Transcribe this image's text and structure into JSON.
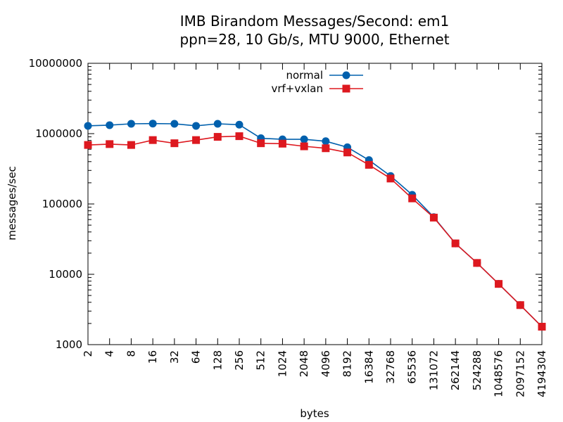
{
  "chart_data": {
    "type": "line",
    "title": "IMB Birandom Messages/Second: em1",
    "subtitle": "ppn=28, 10 Gb/s, MTU 9000, Ethernet",
    "xlabel": "bytes",
    "ylabel": "messages/sec",
    "x_scale": "log2",
    "y_scale": "log10",
    "xlim": [
      2,
      4194304
    ],
    "ylim": [
      1000,
      10000000
    ],
    "x_ticks": [
      "2",
      "4",
      "8",
      "16",
      "32",
      "64",
      "128",
      "256",
      "512",
      "1024",
      "2048",
      "4096",
      "8192",
      "16384",
      "32768",
      "65536",
      "131072",
      "262144",
      "524288",
      "1048576",
      "2097152",
      "4194304"
    ],
    "x_tick_values": [
      2,
      4,
      8,
      16,
      32,
      64,
      128,
      256,
      512,
      1024,
      2048,
      4096,
      8192,
      16384,
      32768,
      65536,
      131072,
      262144,
      524288,
      1048576,
      2097152,
      4194304
    ],
    "y_ticks": [
      "1000",
      "10000",
      "100000",
      "1000000",
      "10000000"
    ],
    "y_tick_values": [
      1000,
      10000,
      100000,
      1000000,
      10000000
    ],
    "legend_position": "top-center",
    "grid": false,
    "series": [
      {
        "name": "normal",
        "color": "#0060ad",
        "marker": "circle",
        "x": [
          2,
          4,
          8,
          16,
          32,
          64,
          128,
          256,
          512,
          1024,
          2048,
          4096,
          8192,
          16384,
          32768,
          65536,
          131072,
          262144,
          524288,
          1048576,
          2097152,
          4194304
        ],
        "values": [
          1290000,
          1320000,
          1380000,
          1390000,
          1380000,
          1290000,
          1380000,
          1340000,
          860000,
          830000,
          830000,
          780000,
          640000,
          420000,
          250000,
          135000,
          65000,
          27500,
          14500,
          7300,
          3650,
          1800
        ]
      },
      {
        "name": "vrf+vxlan",
        "color": "#dd181f",
        "marker": "square",
        "x": [
          2,
          4,
          8,
          16,
          32,
          64,
          128,
          256,
          512,
          1024,
          2048,
          4096,
          8192,
          16384,
          32768,
          65536,
          131072,
          262144,
          524288,
          1048576,
          2097152,
          4194304
        ],
        "values": [
          690000,
          710000,
          690000,
          810000,
          730000,
          810000,
          900000,
          920000,
          730000,
          720000,
          660000,
          620000,
          540000,
          360000,
          230000,
          120000,
          64000,
          27500,
          14500,
          7300,
          3650,
          1800
        ]
      }
    ]
  }
}
